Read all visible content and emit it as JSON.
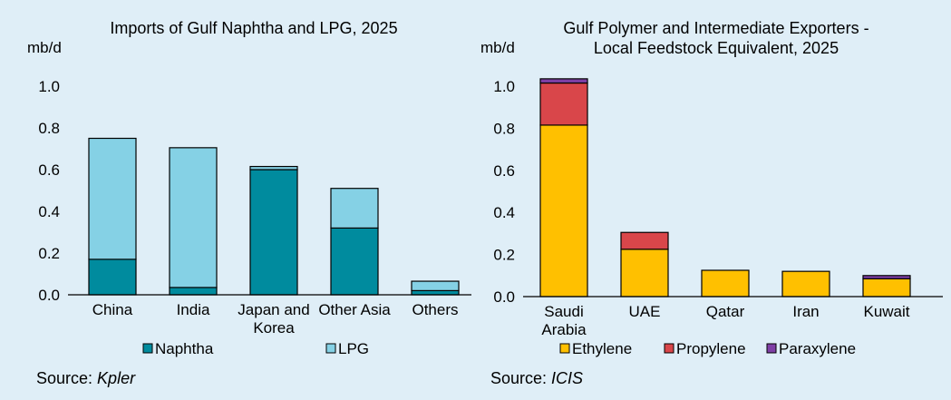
{
  "charts": [
    {
      "title_lines": [
        "Imports of Gulf Naphtha and LPG, 2025"
      ],
      "unit": "mb/d",
      "source_prefix": "Source: ",
      "source_name": "Kpler"
    },
    {
      "title_lines": [
        "Gulf Polymer and Intermediate Exporters -",
        "Local Feedstock Equivalent, 2025"
      ],
      "unit": "mb/d",
      "source_prefix": "Source: ",
      "source_name": "ICIS"
    }
  ],
  "chart_data": [
    {
      "type": "bar",
      "stacked": true,
      "title": "Imports of Gulf Naphtha and LPG, 2025",
      "ylabel": "mb/d",
      "ylim": [
        0,
        1.0
      ],
      "yticks": [
        "0.0",
        "0.2",
        "0.4",
        "0.6",
        "0.8",
        "1.0"
      ],
      "yticks_values": [
        0,
        0.2,
        0.4,
        0.6,
        0.8,
        1.0
      ],
      "categories": [
        [
          "China"
        ],
        [
          "India"
        ],
        [
          "Japan and",
          "Korea"
        ],
        [
          "Other Asia"
        ],
        [
          "Others"
        ]
      ],
      "series": [
        {
          "name": "Naphtha",
          "color": "#008b9e",
          "values": [
            0.17,
            0.035,
            0.6,
            0.32,
            0.02
          ]
        },
        {
          "name": "LPG",
          "color": "#85d1e5",
          "values": [
            0.58,
            0.67,
            0.015,
            0.19,
            0.045
          ]
        }
      ],
      "legend_position": "bottom"
    },
    {
      "type": "bar",
      "stacked": true,
      "title": "Gulf Polymer and Intermediate Exporters - Local Feedstock Equivalent, 2025",
      "ylabel": "mb/d",
      "ylim": [
        0,
        1.0
      ],
      "yticks": [
        "0.0",
        "0.2",
        "0.4",
        "0.6",
        "0.8",
        "1.0"
      ],
      "yticks_values": [
        0,
        0.2,
        0.4,
        0.6,
        0.8,
        1.0
      ],
      "categories": [
        [
          "Saudi",
          "Arabia"
        ],
        [
          "UAE"
        ],
        [
          "Qatar"
        ],
        [
          "Iran"
        ],
        [
          "Kuwait"
        ]
      ],
      "series": [
        {
          "name": "Ethylene",
          "color": "#ffc000",
          "values": [
            0.815,
            0.225,
            0.125,
            0.12,
            0.085
          ]
        },
        {
          "name": "Propylene",
          "color": "#d9464a",
          "values": [
            0.2,
            0.08,
            0,
            0,
            0
          ]
        },
        {
          "name": "Paraxylene",
          "color": "#7f3fa6",
          "values": [
            0.02,
            0,
            0,
            0,
            0.015
          ]
        }
      ],
      "legend_position": "bottom"
    }
  ]
}
